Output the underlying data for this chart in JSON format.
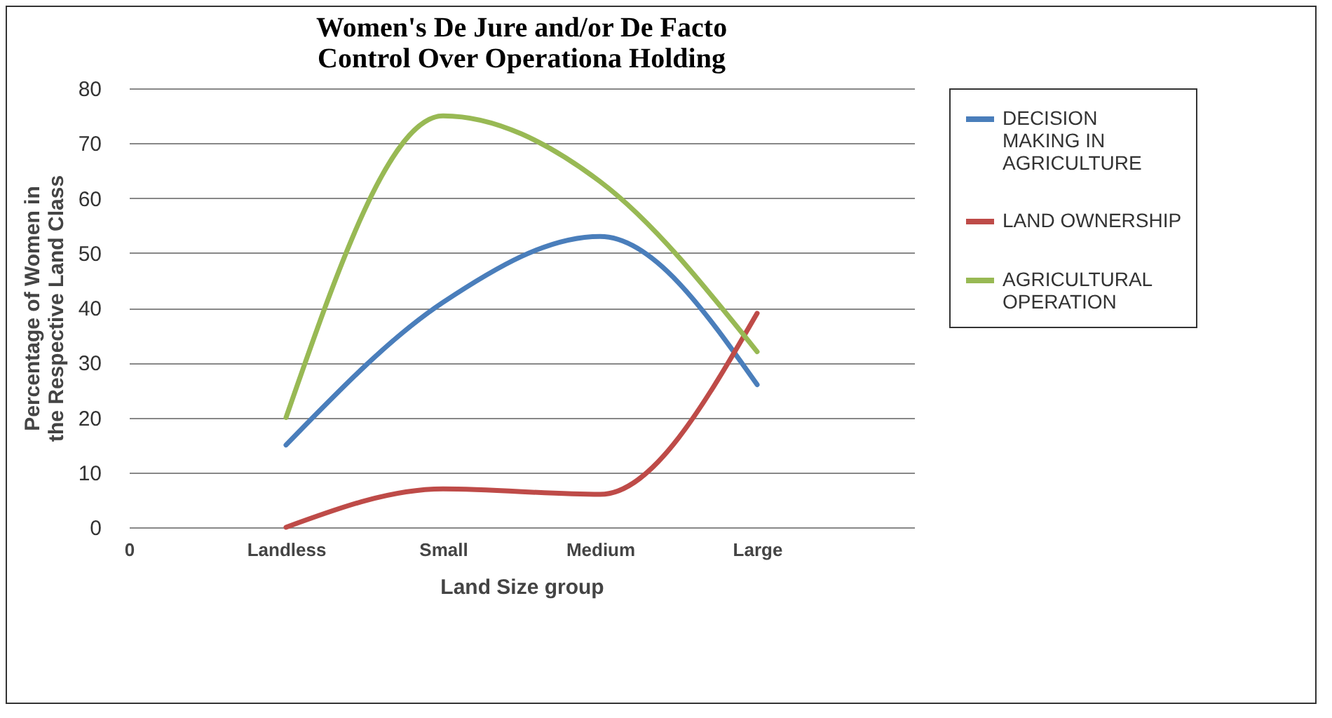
{
  "chart_data": {
    "type": "line",
    "title": "Women's De Jure and/or De Facto Control Over Operationa Holding",
    "xlabel": "Land Size group",
    "ylabel": "Percentage of Women in the Respective Land Class",
    "categories": [
      "0",
      "Landless",
      "Small",
      "Medium",
      "Large",
      null
    ],
    "series": [
      {
        "name": "DECISION MAKING IN AGRICULTURE",
        "color": "#4a7ebb",
        "values": [
          null,
          15,
          41,
          53,
          26,
          null
        ]
      },
      {
        "name": "LAND OWNERSHIP",
        "color": "#be4b48",
        "values": [
          null,
          0,
          7,
          6,
          39,
          null
        ]
      },
      {
        "name": "AGRICULTURAL OPERATION",
        "color": "#98b954",
        "values": [
          null,
          20,
          75,
          63,
          32,
          null
        ]
      }
    ],
    "ylim": [
      0,
      80
    ],
    "yticks": [
      0,
      10,
      20,
      30,
      40,
      50,
      60,
      70,
      80
    ],
    "grid": "y",
    "legend": "right",
    "marker": "none",
    "line_style": "solid"
  }
}
